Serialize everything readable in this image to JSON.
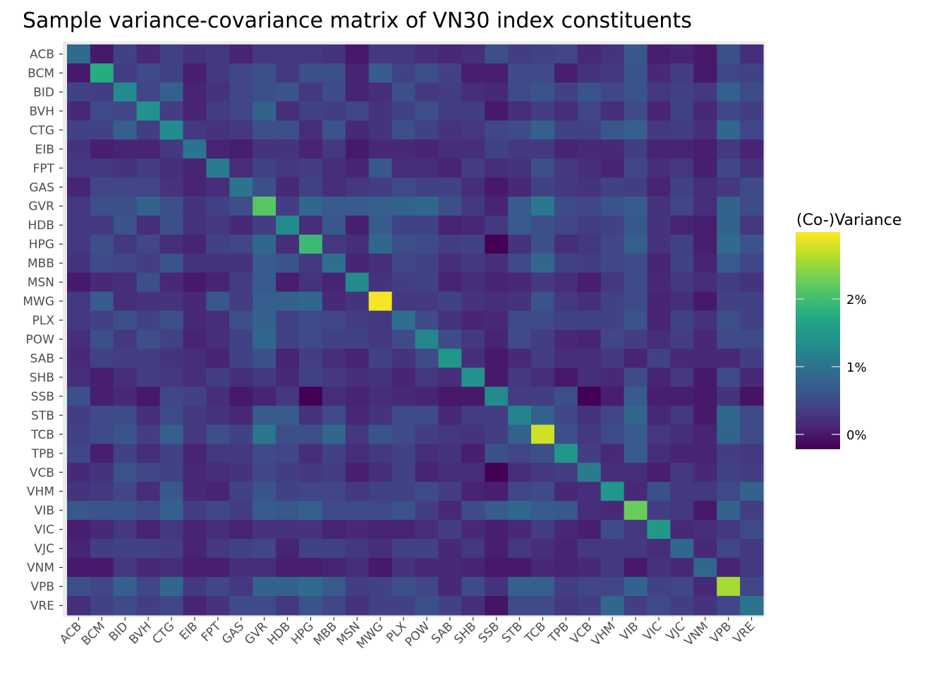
{
  "chart_data": {
    "type": "heatmap",
    "title": "Sample variance-covariance matrix of VN30 index constituents",
    "xlabel": "",
    "ylabel": "",
    "labels": [
      "ACB",
      "BCM",
      "BID",
      "BVH",
      "CTG",
      "EIB",
      "FPT",
      "GAS",
      "GVR",
      "HDB",
      "HPG",
      "MBB",
      "MSN",
      "MWG",
      "PLX",
      "POW",
      "SAB",
      "SHB",
      "SSB",
      "STB",
      "TCB",
      "TPB",
      "VCB",
      "VHM",
      "VIB",
      "VIC",
      "VJC",
      "VNM",
      "VPB",
      "VRE"
    ],
    "value_unit": "%",
    "colormap": "viridis",
    "color_range": [
      -0.22,
      2.99
    ],
    "legend": {
      "title": "(Co-)Variance",
      "placement": "right",
      "ticks": [
        0,
        1,
        2
      ],
      "tick_labels": [
        "0%",
        "1%",
        "2%"
      ]
    },
    "grid": false,
    "values": [
      [
        0.9,
        0.0,
        0.4,
        0.15,
        0.4,
        0.25,
        0.3,
        0.1,
        0.3,
        0.3,
        0.3,
        0.25,
        0.0,
        0.3,
        0.3,
        0.2,
        0.15,
        0.2,
        0.55,
        0.35,
        0.4,
        0.45,
        0.15,
        0.25,
        0.65,
        0.05,
        0.1,
        0.0,
        0.55,
        0.2
      ],
      [
        0.0,
        1.75,
        0.35,
        0.5,
        0.4,
        0.05,
        0.3,
        0.45,
        0.55,
        0.3,
        0.55,
        0.55,
        0.1,
        0.7,
        0.4,
        0.55,
        0.4,
        0.05,
        0.05,
        0.5,
        0.5,
        0.05,
        0.25,
        0.3,
        0.6,
        0.15,
        0.35,
        0.0,
        0.45,
        0.4
      ],
      [
        0.4,
        0.35,
        1.3,
        0.45,
        0.75,
        0.1,
        0.25,
        0.45,
        0.55,
        0.6,
        0.3,
        0.5,
        0.1,
        0.2,
        0.55,
        0.3,
        0.35,
        0.2,
        0.15,
        0.5,
        0.6,
        0.4,
        0.6,
        0.45,
        0.6,
        0.3,
        0.4,
        0.3,
        0.75,
        0.5
      ],
      [
        0.15,
        0.5,
        0.45,
        1.4,
        0.35,
        0.1,
        0.35,
        0.45,
        0.8,
        0.2,
        0.4,
        0.35,
        0.45,
        0.25,
        0.4,
        0.55,
        0.35,
        0.35,
        0.0,
        0.2,
        0.35,
        0.2,
        0.45,
        0.2,
        0.5,
        0.1,
        0.4,
        0.15,
        0.45,
        0.35
      ],
      [
        0.4,
        0.4,
        0.75,
        0.35,
        1.3,
        0.3,
        0.25,
        0.3,
        0.55,
        0.55,
        0.2,
        0.6,
        0.15,
        0.25,
        0.55,
        0.4,
        0.25,
        0.3,
        0.45,
        0.5,
        0.75,
        0.4,
        0.4,
        0.65,
        0.75,
        0.3,
        0.35,
        0.2,
        0.85,
        0.45
      ],
      [
        0.25,
        0.05,
        0.1,
        0.1,
        0.3,
        1.0,
        0.1,
        0.05,
        0.25,
        0.25,
        0.1,
        0.3,
        0.0,
        0.15,
        0.15,
        0.1,
        0.2,
        0.2,
        0.4,
        0.3,
        0.3,
        0.1,
        0.15,
        0.15,
        0.35,
        0.1,
        0.1,
        0.05,
        0.3,
        0.1
      ],
      [
        0.3,
        0.3,
        0.25,
        0.35,
        0.2,
        0.1,
        1.1,
        0.2,
        0.4,
        0.3,
        0.35,
        0.2,
        0.1,
        0.65,
        0.2,
        0.2,
        0.1,
        0.35,
        0.2,
        0.25,
        0.55,
        0.3,
        0.2,
        0.1,
        0.45,
        0.2,
        0.3,
        0.05,
        0.45,
        0.25
      ],
      [
        0.1,
        0.45,
        0.45,
        0.45,
        0.25,
        0.1,
        0.2,
        1.0,
        0.55,
        0.15,
        0.4,
        0.2,
        0.3,
        0.35,
        0.5,
        0.4,
        0.4,
        0.2,
        0.0,
        0.15,
        0.4,
        0.3,
        0.25,
        0.4,
        0.35,
        0.1,
        0.4,
        0.2,
        0.3,
        0.5
      ],
      [
        0.3,
        0.55,
        0.55,
        0.8,
        0.55,
        0.25,
        0.4,
        0.55,
        2.15,
        0.35,
        0.85,
        0.7,
        0.7,
        0.75,
        0.8,
        0.85,
        0.55,
        0.3,
        0.1,
        0.7,
        1.05,
        0.5,
        0.45,
        0.6,
        0.7,
        0.25,
        0.45,
        0.2,
        0.8,
        0.5
      ],
      [
        0.3,
        0.3,
        0.6,
        0.2,
        0.55,
        0.25,
        0.3,
        0.15,
        0.35,
        1.3,
        0.2,
        0.65,
        0.05,
        0.7,
        0.4,
        0.4,
        0.1,
        0.15,
        0.3,
        0.7,
        0.55,
        0.45,
        0.35,
        0.4,
        0.65,
        0.25,
        0.1,
        0.05,
        0.8,
        0.3
      ],
      [
        0.3,
        0.55,
        0.3,
        0.45,
        0.2,
        0.1,
        0.4,
        0.45,
        0.85,
        0.2,
        1.95,
        0.3,
        0.2,
        0.85,
        0.55,
        0.5,
        0.35,
        0.4,
        -0.25,
        0.25,
        0.55,
        0.2,
        0.3,
        0.45,
        0.75,
        0.25,
        0.4,
        0.05,
        0.9,
        0.6
      ],
      [
        0.25,
        0.5,
        0.45,
        0.35,
        0.6,
        0.25,
        0.25,
        0.25,
        0.7,
        0.6,
        0.3,
        0.95,
        0.1,
        0.2,
        0.45,
        0.4,
        0.2,
        0.3,
        0.2,
        0.5,
        0.85,
        0.4,
        0.35,
        0.45,
        0.5,
        0.1,
        0.4,
        0.1,
        0.7,
        0.45
      ],
      [
        0.0,
        0.15,
        0.2,
        0.55,
        0.15,
        0.0,
        0.1,
        0.35,
        0.7,
        0.05,
        0.25,
        0.1,
        1.3,
        0.25,
        0.35,
        0.4,
        0.1,
        0.2,
        0.1,
        0.15,
        0.3,
        0.2,
        0.05,
        0.3,
        0.5,
        0.15,
        0.3,
        0.2,
        0.35,
        0.25
      ],
      [
        0.3,
        0.7,
        0.2,
        0.25,
        0.25,
        0.15,
        0.65,
        0.35,
        0.75,
        0.75,
        0.85,
        0.15,
        0.25,
        2.95,
        0.3,
        0.3,
        0.4,
        0.25,
        0.2,
        0.25,
        0.6,
        0.3,
        0.2,
        0.4,
        0.5,
        0.1,
        0.2,
        0.0,
        0.4,
        0.4
      ],
      [
        0.3,
        0.4,
        0.55,
        0.4,
        0.55,
        0.15,
        0.2,
        0.55,
        0.8,
        0.4,
        0.5,
        0.45,
        0.35,
        0.3,
        0.95,
        0.5,
        0.25,
        0.1,
        0.15,
        0.5,
        0.5,
        0.4,
        0.4,
        0.4,
        0.6,
        0.1,
        0.4,
        0.25,
        0.55,
        0.4
      ],
      [
        0.2,
        0.55,
        0.3,
        0.55,
        0.4,
        0.1,
        0.2,
        0.4,
        0.85,
        0.4,
        0.5,
        0.4,
        0.4,
        0.3,
        0.5,
        1.25,
        0.5,
        0.3,
        0.1,
        0.5,
        0.35,
        0.15,
        0.1,
        0.45,
        0.35,
        0.2,
        0.35,
        0.15,
        0.5,
        0.5
      ],
      [
        0.15,
        0.4,
        0.35,
        0.35,
        0.25,
        0.2,
        0.1,
        0.4,
        0.55,
        0.1,
        0.35,
        0.2,
        0.1,
        0.4,
        0.25,
        0.5,
        1.45,
        0.2,
        0.0,
        0.15,
        0.35,
        0.2,
        0.2,
        0.3,
        0.1,
        0.4,
        0.15,
        0.15,
        0.15,
        0.35
      ],
      [
        0.2,
        0.05,
        0.2,
        0.35,
        0.3,
        0.2,
        0.35,
        0.2,
        0.3,
        0.15,
        0.4,
        0.3,
        0.2,
        0.25,
        0.1,
        0.3,
        0.2,
        1.4,
        0.0,
        0.3,
        0.2,
        0.0,
        0.2,
        0.15,
        0.5,
        0.1,
        0.3,
        0.0,
        0.5,
        0.15
      ],
      [
        0.55,
        0.05,
        0.15,
        0.0,
        0.45,
        0.4,
        0.2,
        0.0,
        0.1,
        0.3,
        -0.25,
        0.2,
        0.1,
        0.2,
        0.15,
        0.1,
        0.0,
        0.0,
        1.3,
        0.35,
        0.35,
        0.55,
        -0.25,
        0.05,
        0.7,
        0.05,
        0.05,
        0.0,
        0.25,
        -0.05
      ],
      [
        0.35,
        0.5,
        0.5,
        0.2,
        0.5,
        0.3,
        0.25,
        0.15,
        0.7,
        0.7,
        0.25,
        0.5,
        0.15,
        0.25,
        0.5,
        0.5,
        0.15,
        0.35,
        0.35,
        1.2,
        0.8,
        0.45,
        0.25,
        0.45,
        0.85,
        0.15,
        0.3,
        0.0,
        0.85,
        0.5
      ],
      [
        0.4,
        0.5,
        0.6,
        0.35,
        0.75,
        0.3,
        0.55,
        0.4,
        1.05,
        0.55,
        0.55,
        0.85,
        0.3,
        0.6,
        0.5,
        0.35,
        0.3,
        0.25,
        0.35,
        0.8,
        2.75,
        0.55,
        0.3,
        0.5,
        0.7,
        0.3,
        0.2,
        0.1,
        0.8,
        0.5
      ],
      [
        0.45,
        0.05,
        0.4,
        0.2,
        0.4,
        0.1,
        0.3,
        0.3,
        0.5,
        0.45,
        0.2,
        0.4,
        0.2,
        0.3,
        0.4,
        0.2,
        0.25,
        0.05,
        0.55,
        0.45,
        0.55,
        1.45,
        0.35,
        0.15,
        0.7,
        0.2,
        0.1,
        0.1,
        0.35,
        0.3
      ],
      [
        0.15,
        0.25,
        0.6,
        0.45,
        0.4,
        0.15,
        0.2,
        0.25,
        0.45,
        0.35,
        0.3,
        0.35,
        0.05,
        0.2,
        0.4,
        0.1,
        0.2,
        0.2,
        -0.25,
        0.2,
        0.3,
        0.35,
        1.1,
        0.2,
        0.2,
        0.05,
        0.3,
        0.15,
        0.4,
        0.35
      ],
      [
        0.25,
        0.3,
        0.45,
        0.2,
        0.65,
        0.15,
        0.1,
        0.4,
        0.6,
        0.4,
        0.45,
        0.45,
        0.3,
        0.4,
        0.4,
        0.5,
        0.35,
        0.1,
        0.05,
        0.45,
        0.5,
        0.15,
        0.2,
        1.45,
        0.15,
        0.55,
        0.3,
        0.3,
        0.5,
        0.8
      ],
      [
        0.65,
        0.6,
        0.6,
        0.5,
        0.75,
        0.35,
        0.45,
        0.35,
        0.7,
        0.65,
        0.75,
        0.5,
        0.5,
        0.5,
        0.6,
        0.35,
        0.15,
        0.5,
        0.7,
        0.85,
        0.7,
        0.65,
        0.2,
        0.15,
        2.25,
        0.35,
        0.3,
        0.0,
        0.8,
        0.35
      ],
      [
        0.05,
        0.15,
        0.3,
        0.1,
        0.3,
        0.1,
        0.2,
        0.1,
        0.25,
        0.25,
        0.25,
        0.1,
        0.15,
        0.1,
        0.1,
        0.2,
        0.35,
        0.15,
        0.05,
        0.15,
        0.35,
        0.15,
        0.05,
        0.5,
        0.3,
        1.5,
        0.15,
        0.2,
        0.3,
        0.5
      ],
      [
        0.1,
        0.35,
        0.4,
        0.4,
        0.35,
        0.1,
        0.3,
        0.4,
        0.45,
        0.1,
        0.4,
        0.4,
        0.3,
        0.2,
        0.4,
        0.4,
        0.15,
        0.3,
        0.05,
        0.3,
        0.2,
        0.1,
        0.3,
        0.3,
        0.3,
        0.2,
        0.85,
        0.15,
        0.45,
        0.3
      ],
      [
        0.0,
        0.0,
        0.3,
        0.15,
        0.2,
        0.05,
        0.05,
        0.2,
        0.2,
        0.05,
        0.05,
        0.1,
        0.2,
        0.0,
        0.25,
        0.15,
        0.15,
        0.1,
        0.0,
        0.0,
        0.15,
        0.1,
        0.15,
        0.3,
        0.0,
        0.25,
        0.15,
        0.85,
        0.1,
        0.3
      ],
      [
        0.55,
        0.45,
        0.75,
        0.45,
        0.85,
        0.3,
        0.45,
        0.3,
        0.8,
        0.8,
        0.9,
        0.7,
        0.35,
        0.4,
        0.55,
        0.45,
        0.15,
        0.5,
        0.25,
        0.75,
        0.75,
        0.35,
        0.45,
        0.45,
        0.8,
        0.4,
        0.45,
        0.15,
        2.55,
        0.45
      ],
      [
        0.2,
        0.4,
        0.5,
        0.35,
        0.45,
        0.1,
        0.25,
        0.5,
        0.5,
        0.3,
        0.6,
        0.45,
        0.25,
        0.4,
        0.4,
        0.55,
        0.4,
        0.2,
        -0.05,
        0.5,
        0.5,
        0.3,
        0.35,
        0.85,
        0.35,
        0.5,
        0.35,
        0.25,
        0.45,
        1.0
      ]
    ]
  }
}
